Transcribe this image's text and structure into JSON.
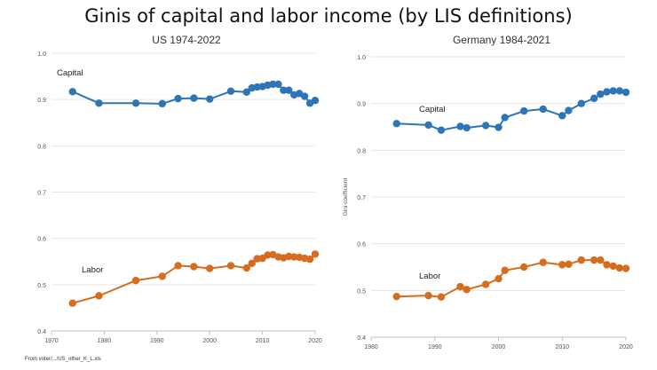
{
  "title": "Ginis of capital and labor income (by LIS definitions)",
  "source_note": "From voter/.../US_other_K_L.xls",
  "colors": {
    "capital": "#2e75b6",
    "labor": "#d86c1e",
    "grid": "#e6e6e6",
    "axis": "#bfbfbf"
  },
  "chart_data": [
    {
      "type": "line",
      "title": "US 1974-2022",
      "xlabel": "",
      "ylabel": "",
      "xlim": [
        1970,
        2020
      ],
      "ylim": [
        0.4,
        1.0
      ],
      "xticks": [
        1970,
        1980,
        1990,
        2000,
        2010,
        2020
      ],
      "yticks": [
        0.4,
        0.5,
        0.6,
        0.7,
        0.8,
        0.9,
        1.0
      ],
      "ytick_labels": [
        "0.4",
        "0.5",
        "0.6",
        "0.7",
        "0.8",
        "0.9",
        "1.0"
      ],
      "annotations": {
        "capital": "Capital",
        "labor": "Labor"
      },
      "series": [
        {
          "name": "Capital",
          "x": [
            1974,
            1979,
            1986,
            1991,
            1994,
            1997,
            2000,
            2004,
            2007,
            2008,
            2009,
            2010,
            2011,
            2012,
            2013,
            2014,
            2015,
            2016,
            2017,
            2018,
            2019,
            2020
          ],
          "y": [
            0.917,
            0.892,
            0.892,
            0.891,
            0.902,
            0.903,
            0.901,
            0.918,
            0.916,
            0.925,
            0.927,
            0.928,
            0.931,
            0.933,
            0.933,
            0.92,
            0.92,
            0.91,
            0.913,
            0.907,
            0.892,
            0.898
          ]
        },
        {
          "name": "Labor",
          "x": [
            1974,
            1979,
            1986,
            1991,
            1994,
            1997,
            2000,
            2004,
            2007,
            2008,
            2009,
            2010,
            2011,
            2012,
            2013,
            2014,
            2015,
            2016,
            2017,
            2018,
            2019,
            2020
          ],
          "y": [
            0.46,
            0.476,
            0.509,
            0.518,
            0.541,
            0.539,
            0.535,
            0.541,
            0.536,
            0.546,
            0.556,
            0.557,
            0.564,
            0.565,
            0.56,
            0.558,
            0.561,
            0.56,
            0.559,
            0.557,
            0.555,
            0.566
          ]
        }
      ]
    },
    {
      "type": "line",
      "title": "Germany 1984-2021",
      "xlabel": "",
      "ylabel": "Gini coefficient",
      "xlim": [
        1980,
        2020
      ],
      "ylim": [
        0.4,
        1.0
      ],
      "xticks": [
        1980,
        1990,
        2000,
        2010,
        2020
      ],
      "yticks": [
        0.4,
        0.5,
        0.6,
        0.7,
        0.8,
        0.9,
        1.0
      ],
      "ytick_labels": [
        "0.4",
        "0.5",
        "0.6",
        "0.7",
        "0.8",
        "0.9",
        "1.0"
      ],
      "annotations": {
        "capital": "Capital",
        "labor": "Labor"
      },
      "series": [
        {
          "name": "Capital",
          "x": [
            1984,
            1989,
            1991,
            1994,
            1995,
            1998,
            2000,
            2001,
            2004,
            2007,
            2010,
            2011,
            2013,
            2015,
            2016,
            2017,
            2018,
            2019,
            2020
          ],
          "y": [
            0.857,
            0.854,
            0.843,
            0.851,
            0.848,
            0.853,
            0.849,
            0.87,
            0.884,
            0.888,
            0.874,
            0.885,
            0.9,
            0.911,
            0.92,
            0.925,
            0.927,
            0.927,
            0.924
          ]
        },
        {
          "name": "Labor",
          "x": [
            1984,
            1989,
            1991,
            1994,
            1995,
            1998,
            2000,
            2001,
            2004,
            2007,
            2010,
            2011,
            2013,
            2015,
            2016,
            2017,
            2018,
            2019,
            2020
          ],
          "y": [
            0.487,
            0.489,
            0.486,
            0.508,
            0.502,
            0.513,
            0.525,
            0.543,
            0.55,
            0.56,
            0.555,
            0.556,
            0.565,
            0.565,
            0.565,
            0.555,
            0.552,
            0.548,
            0.547
          ]
        }
      ]
    }
  ]
}
